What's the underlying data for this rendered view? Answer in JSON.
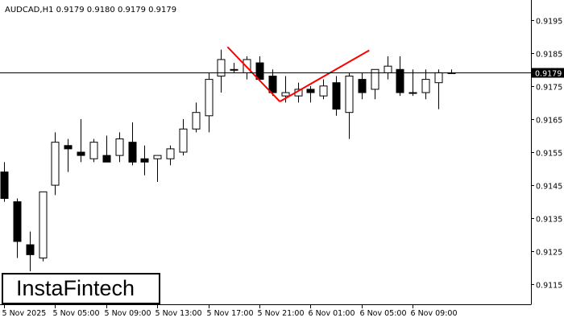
{
  "chart_data": {
    "type": "candlestick",
    "title": "AUDCAD,H1  0.9179 0.9180 0.9179 0.9179",
    "symbol": "AUDCAD,H1",
    "ohlc_header": [
      "0.9179",
      "0.9180",
      "0.9179",
      "0.9179"
    ],
    "current_price": 0.9179,
    "current_price_label": "0.9179",
    "ylim": [
      0.9109,
      0.9201
    ],
    "yticks": [
      {
        "value": 0.9195,
        "label": "0.9195"
      },
      {
        "value": 0.9185,
        "label": "0.9185"
      },
      {
        "value": 0.9175,
        "label": "0.9175"
      },
      {
        "value": 0.9165,
        "label": "0.9165"
      },
      {
        "value": 0.9155,
        "label": "0.9155"
      },
      {
        "value": 0.9145,
        "label": "0.9145"
      },
      {
        "value": 0.9135,
        "label": "0.9135"
      },
      {
        "value": 0.9125,
        "label": "0.9125"
      },
      {
        "value": 0.9115,
        "label": "0.9115"
      }
    ],
    "xticks": [
      {
        "index": 0,
        "label": "5 Nov 2025"
      },
      {
        "index": 4,
        "label": "5 Nov 05:00"
      },
      {
        "index": 8,
        "label": "5 Nov 09:00"
      },
      {
        "index": 12,
        "label": "5 Nov 13:00"
      },
      {
        "index": 16,
        "label": "5 Nov 17:00"
      },
      {
        "index": 20,
        "label": "5 Nov 21:00"
      },
      {
        "index": 24,
        "label": "6 Nov 01:00"
      },
      {
        "index": 28,
        "label": "6 Nov 05:00"
      },
      {
        "index": 32,
        "label": "6 Nov 09:00"
      }
    ],
    "candles": [
      {
        "o": 0.9149,
        "h": 0.9152,
        "l": 0.914,
        "c": 0.9141
      },
      {
        "o": 0.914,
        "h": 0.9141,
        "l": 0.9123,
        "c": 0.9128
      },
      {
        "o": 0.9127,
        "h": 0.9131,
        "l": 0.9119,
        "c": 0.9124
      },
      {
        "o": 0.9123,
        "h": 0.9143,
        "l": 0.9122,
        "c": 0.9143
      },
      {
        "o": 0.9145,
        "h": 0.9161,
        "l": 0.9142,
        "c": 0.9158
      },
      {
        "o": 0.9157,
        "h": 0.9159,
        "l": 0.9149,
        "c": 0.9156
      },
      {
        "o": 0.9155,
        "h": 0.9165,
        "l": 0.9152,
        "c": 0.9154
      },
      {
        "o": 0.9153,
        "h": 0.9159,
        "l": 0.9152,
        "c": 0.9158
      },
      {
        "o": 0.9154,
        "h": 0.916,
        "l": 0.9152,
        "c": 0.9152
      },
      {
        "o": 0.9154,
        "h": 0.9161,
        "l": 0.9152,
        "c": 0.9159
      },
      {
        "o": 0.9158,
        "h": 0.9164,
        "l": 0.9151,
        "c": 0.9152
      },
      {
        "o": 0.9153,
        "h": 0.9157,
        "l": 0.9148,
        "c": 0.9152
      },
      {
        "o": 0.9153,
        "h": 0.9154,
        "l": 0.9146,
        "c": 0.9154
      },
      {
        "o": 0.9153,
        "h": 0.9157,
        "l": 0.9151,
        "c": 0.9156
      },
      {
        "o": 0.9155,
        "h": 0.9165,
        "l": 0.9154,
        "c": 0.9162
      },
      {
        "o": 0.9162,
        "h": 0.917,
        "l": 0.9161,
        "c": 0.9167
      },
      {
        "o": 0.9166,
        "h": 0.9179,
        "l": 0.9161,
        "c": 0.9177
      },
      {
        "o": 0.9178,
        "h": 0.9186,
        "l": 0.9173,
        "c": 0.9183
      },
      {
        "o": 0.918,
        "h": 0.9182,
        "l": 0.9179,
        "c": 0.918
      },
      {
        "o": 0.9179,
        "h": 0.9184,
        "l": 0.9177,
        "c": 0.9183
      },
      {
        "o": 0.9182,
        "h": 0.9184,
        "l": 0.9177,
        "c": 0.9177
      },
      {
        "o": 0.9178,
        "h": 0.918,
        "l": 0.9172,
        "c": 0.9173
      },
      {
        "o": 0.9172,
        "h": 0.9178,
        "l": 0.917,
        "c": 0.9173
      },
      {
        "o": 0.9172,
        "h": 0.9176,
        "l": 0.917,
        "c": 0.9174
      },
      {
        "o": 0.9174,
        "h": 0.9175,
        "l": 0.917,
        "c": 0.9173
      },
      {
        "o": 0.9172,
        "h": 0.9177,
        "l": 0.9171,
        "c": 0.9175
      },
      {
        "o": 0.9176,
        "h": 0.9178,
        "l": 0.9166,
        "c": 0.9168
      },
      {
        "o": 0.9167,
        "h": 0.9179,
        "l": 0.9159,
        "c": 0.9178
      },
      {
        "o": 0.9177,
        "h": 0.9179,
        "l": 0.9171,
        "c": 0.9173
      },
      {
        "o": 0.9174,
        "h": 0.918,
        "l": 0.9171,
        "c": 0.918
      },
      {
        "o": 0.9179,
        "h": 0.9184,
        "l": 0.9177,
        "c": 0.9181
      },
      {
        "o": 0.918,
        "h": 0.9184,
        "l": 0.9172,
        "c": 0.9173
      },
      {
        "o": 0.9173,
        "h": 0.918,
        "l": 0.9172,
        "c": 0.9173
      },
      {
        "o": 0.9173,
        "h": 0.918,
        "l": 0.9171,
        "c": 0.9177
      },
      {
        "o": 0.9176,
        "h": 0.918,
        "l": 0.9168,
        "c": 0.9179
      },
      {
        "o": 0.9179,
        "h": 0.918,
        "l": 0.9179,
        "c": 0.9179
      }
    ],
    "pattern_lines": [
      {
        "from": {
          "index": 17.5,
          "price": 0.91868
        },
        "to": {
          "index": 21.6,
          "price": 0.91703
        }
      },
      {
        "from": {
          "index": 21.6,
          "price": 0.91703
        },
        "to": {
          "index": 28.6,
          "price": 0.91858
        }
      }
    ],
    "grid": false,
    "colors": {
      "background": "#ffffff",
      "candle_outline": "#000000",
      "bull_body": "#ffffff",
      "bear_body": "#000000",
      "pattern_line": "#ff0000",
      "price_line": "#000000",
      "price_label_bg": "#000000",
      "price_label_text": "#ffffff"
    }
  },
  "watermark": {
    "brand": "InstaFintech"
  }
}
